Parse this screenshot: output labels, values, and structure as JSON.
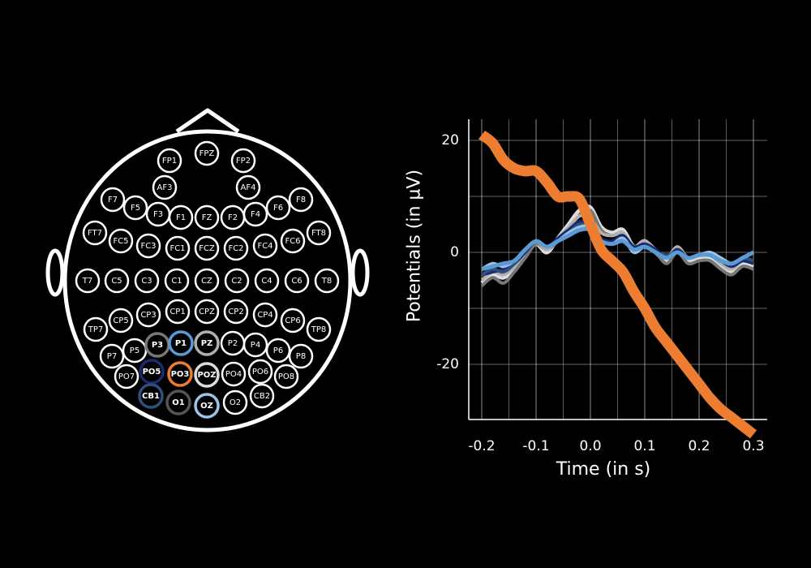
{
  "head_map": {
    "electrodes": [
      {
        "label": "FP1",
        "highlight": ""
      },
      {
        "label": "FPZ",
        "highlight": ""
      },
      {
        "label": "FP2",
        "highlight": ""
      },
      {
        "label": "AF3",
        "highlight": ""
      },
      {
        "label": "AF4",
        "highlight": ""
      },
      {
        "label": "F7",
        "highlight": ""
      },
      {
        "label": "F5",
        "highlight": ""
      },
      {
        "label": "F3",
        "highlight": ""
      },
      {
        "label": "F1",
        "highlight": ""
      },
      {
        "label": "FZ",
        "highlight": ""
      },
      {
        "label": "F2",
        "highlight": ""
      },
      {
        "label": "F4",
        "highlight": ""
      },
      {
        "label": "F6",
        "highlight": ""
      },
      {
        "label": "F8",
        "highlight": ""
      },
      {
        "label": "FT7",
        "highlight": ""
      },
      {
        "label": "FC5",
        "highlight": ""
      },
      {
        "label": "FC3",
        "highlight": ""
      },
      {
        "label": "FC1",
        "highlight": ""
      },
      {
        "label": "FCZ",
        "highlight": ""
      },
      {
        "label": "FC2",
        "highlight": ""
      },
      {
        "label": "FC4",
        "highlight": ""
      },
      {
        "label": "FC6",
        "highlight": ""
      },
      {
        "label": "FT8",
        "highlight": ""
      },
      {
        "label": "T7",
        "highlight": ""
      },
      {
        "label": "C5",
        "highlight": ""
      },
      {
        "label": "C3",
        "highlight": ""
      },
      {
        "label": "C1",
        "highlight": ""
      },
      {
        "label": "CZ",
        "highlight": ""
      },
      {
        "label": "C2",
        "highlight": ""
      },
      {
        "label": "C4",
        "highlight": ""
      },
      {
        "label": "C6",
        "highlight": ""
      },
      {
        "label": "T8",
        "highlight": ""
      },
      {
        "label": "TP7",
        "highlight": ""
      },
      {
        "label": "CP5",
        "highlight": ""
      },
      {
        "label": "CP3",
        "highlight": ""
      },
      {
        "label": "CP1",
        "highlight": ""
      },
      {
        "label": "CPZ",
        "highlight": ""
      },
      {
        "label": "CP2",
        "highlight": ""
      },
      {
        "label": "CP4",
        "highlight": ""
      },
      {
        "label": "CP6",
        "highlight": ""
      },
      {
        "label": "TP8",
        "highlight": ""
      },
      {
        "label": "P7",
        "highlight": ""
      },
      {
        "label": "P5",
        "highlight": ""
      },
      {
        "label": "P3",
        "highlight": "#777777"
      },
      {
        "label": "P1",
        "highlight": "#5b9bd5"
      },
      {
        "label": "PZ",
        "highlight": "#b0b0b0"
      },
      {
        "label": "P2",
        "highlight": ""
      },
      {
        "label": "P4",
        "highlight": ""
      },
      {
        "label": "P6",
        "highlight": ""
      },
      {
        "label": "P8",
        "highlight": ""
      },
      {
        "label": "PO7",
        "highlight": ""
      },
      {
        "label": "PO5",
        "highlight": "#1a2a6e"
      },
      {
        "label": "PO3",
        "highlight": "#ed7d31"
      },
      {
        "label": "POZ",
        "highlight": "#dddddd"
      },
      {
        "label": "PO4",
        "highlight": ""
      },
      {
        "label": "PO6",
        "highlight": ""
      },
      {
        "label": "PO8",
        "highlight": ""
      },
      {
        "label": "CB1",
        "highlight": "#2f4f7f"
      },
      {
        "label": "O1",
        "highlight": "#555555"
      },
      {
        "label": "OZ",
        "highlight": "#9dc3e6"
      },
      {
        "label": "O2",
        "highlight": ""
      },
      {
        "label": "CB2",
        "highlight": ""
      }
    ]
  },
  "colors": {
    "background": "#000000",
    "foreground": "#ffffff",
    "highlight_orange": "#ed7d31",
    "grid": "#ffffff"
  },
  "chart_data": {
    "type": "line",
    "xlabel": "Time (in s)",
    "ylabel": "Potentials (in µV)",
    "xlim": [
      -0.2,
      0.3
    ],
    "ylim": [
      -30,
      23
    ],
    "xticks": [
      -0.2,
      -0.1,
      0.0,
      0.1,
      0.2,
      0.3
    ],
    "xtick_labels": [
      "-0.2",
      "-0.1",
      "0.0",
      "0.1",
      "0.2",
      "0.3"
    ],
    "yticks": [
      -20,
      0,
      20
    ],
    "ytick_labels": [
      "-20",
      "0",
      "20"
    ],
    "grid": true,
    "x": [
      -0.2,
      -0.18,
      -0.16,
      -0.14,
      -0.12,
      -0.1,
      -0.08,
      -0.06,
      -0.04,
      -0.02,
      0.0,
      0.02,
      0.04,
      0.06,
      0.08,
      0.1,
      0.12,
      0.14,
      0.16,
      0.18,
      0.2,
      0.22,
      0.24,
      0.26,
      0.28,
      0.3
    ],
    "series": [
      {
        "color": "#ed7d31",
        "width": 13,
        "values": [
          21,
          19.5,
          16.5,
          15,
          14.5,
          14.5,
          12.5,
          10,
          10,
          9.5,
          5,
          0.5,
          -1.5,
          -3.5,
          -7,
          -10,
          -13.5,
          -16,
          -18.5,
          -21,
          -23.5,
          -26,
          -28,
          -29.5,
          -31,
          -32.5
        ]
      },
      {
        "color": "#dddddd",
        "width": 5,
        "values": [
          -5.5,
          -4,
          -4.5,
          -3,
          -0.5,
          1.5,
          0,
          2.5,
          5,
          7.5,
          8,
          4.5,
          3.5,
          4,
          1,
          2,
          0,
          -1.5,
          0.5,
          -1.5,
          -1,
          -1,
          -2.5,
          -3.5,
          -2,
          -2.5
        ]
      },
      {
        "color": "#777777",
        "width": 4,
        "values": [
          -6,
          -4.5,
          -5.5,
          -3.5,
          -1,
          1.5,
          0.5,
          2,
          4.5,
          6.5,
          7.5,
          4,
          3,
          3.5,
          0.5,
          1.5,
          0,
          -2,
          0,
          -2,
          -1.5,
          -1.5,
          -3,
          -4,
          -2.5,
          -3
        ]
      },
      {
        "color": "#b0b0b0",
        "width": 4,
        "values": [
          -5,
          -3.5,
          -4,
          -2.5,
          0,
          2,
          0.5,
          2.5,
          4.5,
          6.5,
          6,
          3.5,
          3,
          3.5,
          1,
          2,
          0.5,
          -1,
          1,
          -1,
          -0.5,
          -0.5,
          -2,
          -3,
          -1.5,
          -2
        ]
      },
      {
        "color": "#1a2a6e",
        "width": 4,
        "values": [
          -4,
          -3.5,
          -3,
          -2,
          0,
          2,
          1,
          2.5,
          4,
          5.5,
          5,
          2.5,
          2,
          3,
          1,
          1.5,
          0.5,
          -1,
          0.5,
          -1,
          -0.5,
          -0.5,
          -1.5,
          -2.5,
          -1.5,
          -2
        ]
      },
      {
        "color": "#2f4f7f",
        "width": 4,
        "values": [
          -4,
          -3,
          -3.5,
          -2,
          0.5,
          2,
          1,
          2,
          3.5,
          5,
          4.5,
          2,
          1.5,
          2.5,
          0.5,
          1,
          0,
          -0.5,
          0,
          -1,
          -0.5,
          0,
          -1,
          -2,
          -1,
          -1.5
        ]
      },
      {
        "color": "#9dc3e6",
        "width": 4,
        "values": [
          -3,
          -2,
          -2.5,
          -1.5,
          0.5,
          2,
          1,
          2,
          3.5,
          4.5,
          4.5,
          2,
          1.5,
          2.5,
          0,
          1,
          0,
          -1,
          0,
          -1,
          -0.5,
          0,
          -1,
          -2,
          -1,
          0
        ]
      },
      {
        "color": "#5b9bd5",
        "width": 5,
        "values": [
          -3,
          -2.5,
          -2,
          -1.5,
          0.5,
          2,
          1,
          2,
          3,
          4,
          4,
          2,
          1.5,
          2,
          0.5,
          1,
          0,
          -1,
          0,
          -1,
          -0.5,
          -0.5,
          -1.5,
          -2,
          -1,
          0
        ]
      }
    ]
  }
}
